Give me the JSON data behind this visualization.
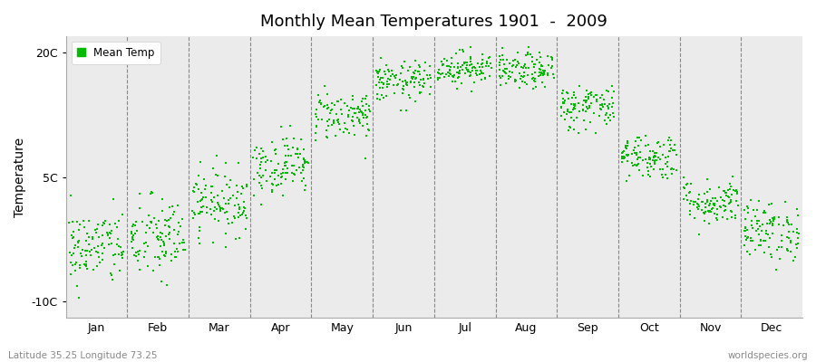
{
  "title": "Monthly Mean Temperatures 1901  -  2009",
  "ylabel": "Temperature",
  "yticks": [
    -10,
    5,
    20
  ],
  "ytick_labels": [
    "-10C",
    "5C",
    "20C"
  ],
  "ylim": [
    -12,
    22
  ],
  "months": [
    "Jan",
    "Feb",
    "Mar",
    "Apr",
    "May",
    "Jun",
    "Jul",
    "Aug",
    "Sep",
    "Oct",
    "Nov",
    "Dec"
  ],
  "month_means": [
    -3.5,
    -2.5,
    2.0,
    6.5,
    12.5,
    16.5,
    18.2,
    17.8,
    13.5,
    7.5,
    2.0,
    -1.5
  ],
  "month_stds": [
    2.3,
    2.6,
    2.0,
    1.8,
    1.5,
    1.2,
    1.0,
    1.1,
    1.4,
    1.4,
    1.4,
    1.8
  ],
  "n_years": 109,
  "dot_color": "#00bb00",
  "dot_size": 2.5,
  "bg_color": "#ebebeb",
  "grid_color": "#888888",
  "bottom_left_text": "Latitude 35.25 Longitude 73.25",
  "bottom_right_text": "worldspecies.org",
  "legend_label": "Mean Temp"
}
